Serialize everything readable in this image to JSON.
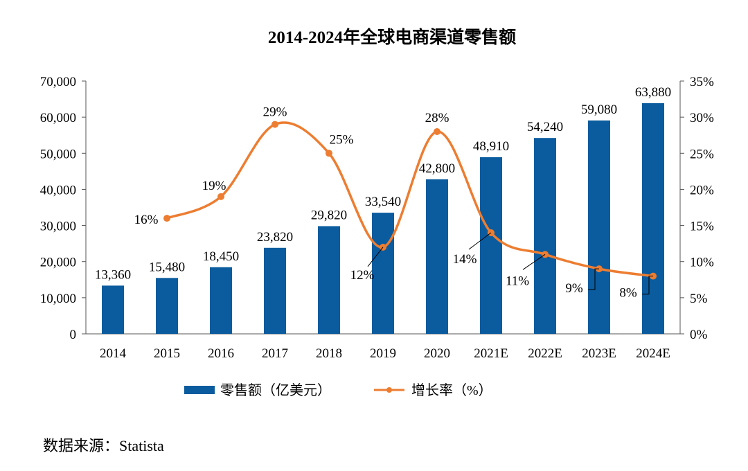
{
  "chart_data": {
    "type": "bar",
    "title": "2014-2024年全球电商渠道零售额",
    "categories": [
      "2014",
      "2015",
      "2016",
      "2017",
      "2018",
      "2019",
      "2020",
      "2021E",
      "2022E",
      "2023E",
      "2024E"
    ],
    "series": [
      {
        "name": "零售额（亿美元）",
        "type": "bar",
        "axis": "left",
        "color": "#0b5c9e",
        "values": [
          13360,
          15480,
          18450,
          23820,
          29820,
          33540,
          42800,
          48910,
          54240,
          59080,
          63880
        ],
        "labels": [
          "13,360",
          "15,480",
          "18,450",
          "23,820",
          "29,820",
          "33,540",
          "42,800",
          "48,910",
          "54,240",
          "59,080",
          "63,880"
        ]
      },
      {
        "name": "增长率（%）",
        "type": "line",
        "axis": "right",
        "color": "#ed7d31",
        "smooth": true,
        "values": [
          null,
          16,
          19,
          29,
          25,
          12,
          28,
          14,
          11,
          9,
          8
        ],
        "labels": [
          null,
          "16%",
          "19%",
          "29%",
          "25%",
          "12%",
          "28%",
          "14%",
          "11%",
          "9%",
          "8%"
        ]
      }
    ],
    "y_left": {
      "min": 0,
      "max": 70000,
      "ticks": [
        0,
        10000,
        20000,
        30000,
        40000,
        50000,
        60000,
        70000
      ],
      "tick_labels": [
        "0",
        "10,000",
        "20,000",
        "30,000",
        "40,000",
        "50,000",
        "60,000",
        "70,000"
      ]
    },
    "y_right": {
      "min": 0,
      "max": 35,
      "ticks": [
        0,
        5,
        10,
        15,
        20,
        25,
        30,
        35
      ],
      "tick_labels": [
        "0%",
        "5%",
        "10%",
        "15%",
        "20%",
        "25%",
        "30%",
        "35%"
      ]
    },
    "grid": false,
    "legend_position": "bottom"
  },
  "source": "数据来源：Statista"
}
